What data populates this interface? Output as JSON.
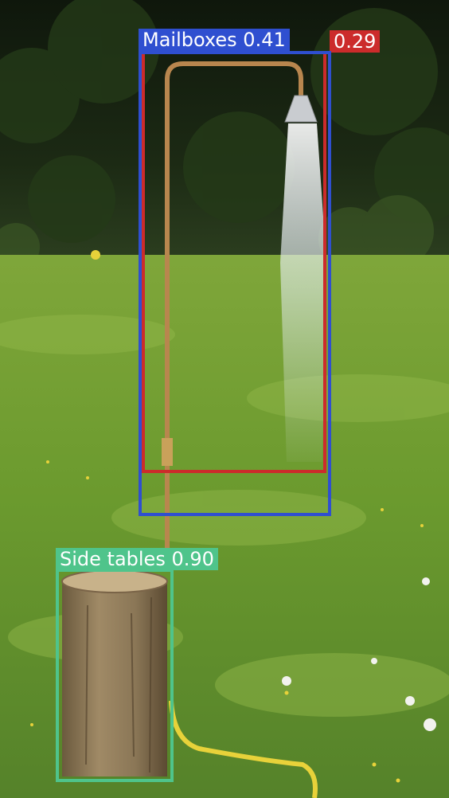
{
  "image": {
    "description_hidden": "",
    "colors": {
      "sky_trees": "#1f2b16",
      "meadow": "#6f9a33",
      "copper_pipe": "#b8864e",
      "hose": "#e8d23a",
      "stump": "#8a7757"
    }
  },
  "detections": [
    {
      "id": "det-red",
      "label": "",
      "score": "0.29",
      "text": "0.29",
      "color": "#cc2b2b"
    },
    {
      "id": "det-blue",
      "label": "Mailboxes",
      "score": "0.41",
      "text": "Mailboxes 0.41",
      "color": "#2f4fd0"
    },
    {
      "id": "det-green",
      "label": "Side tables",
      "score": "0.90",
      "text": "Side tables 0.90",
      "color": "#4fc48b"
    }
  ]
}
